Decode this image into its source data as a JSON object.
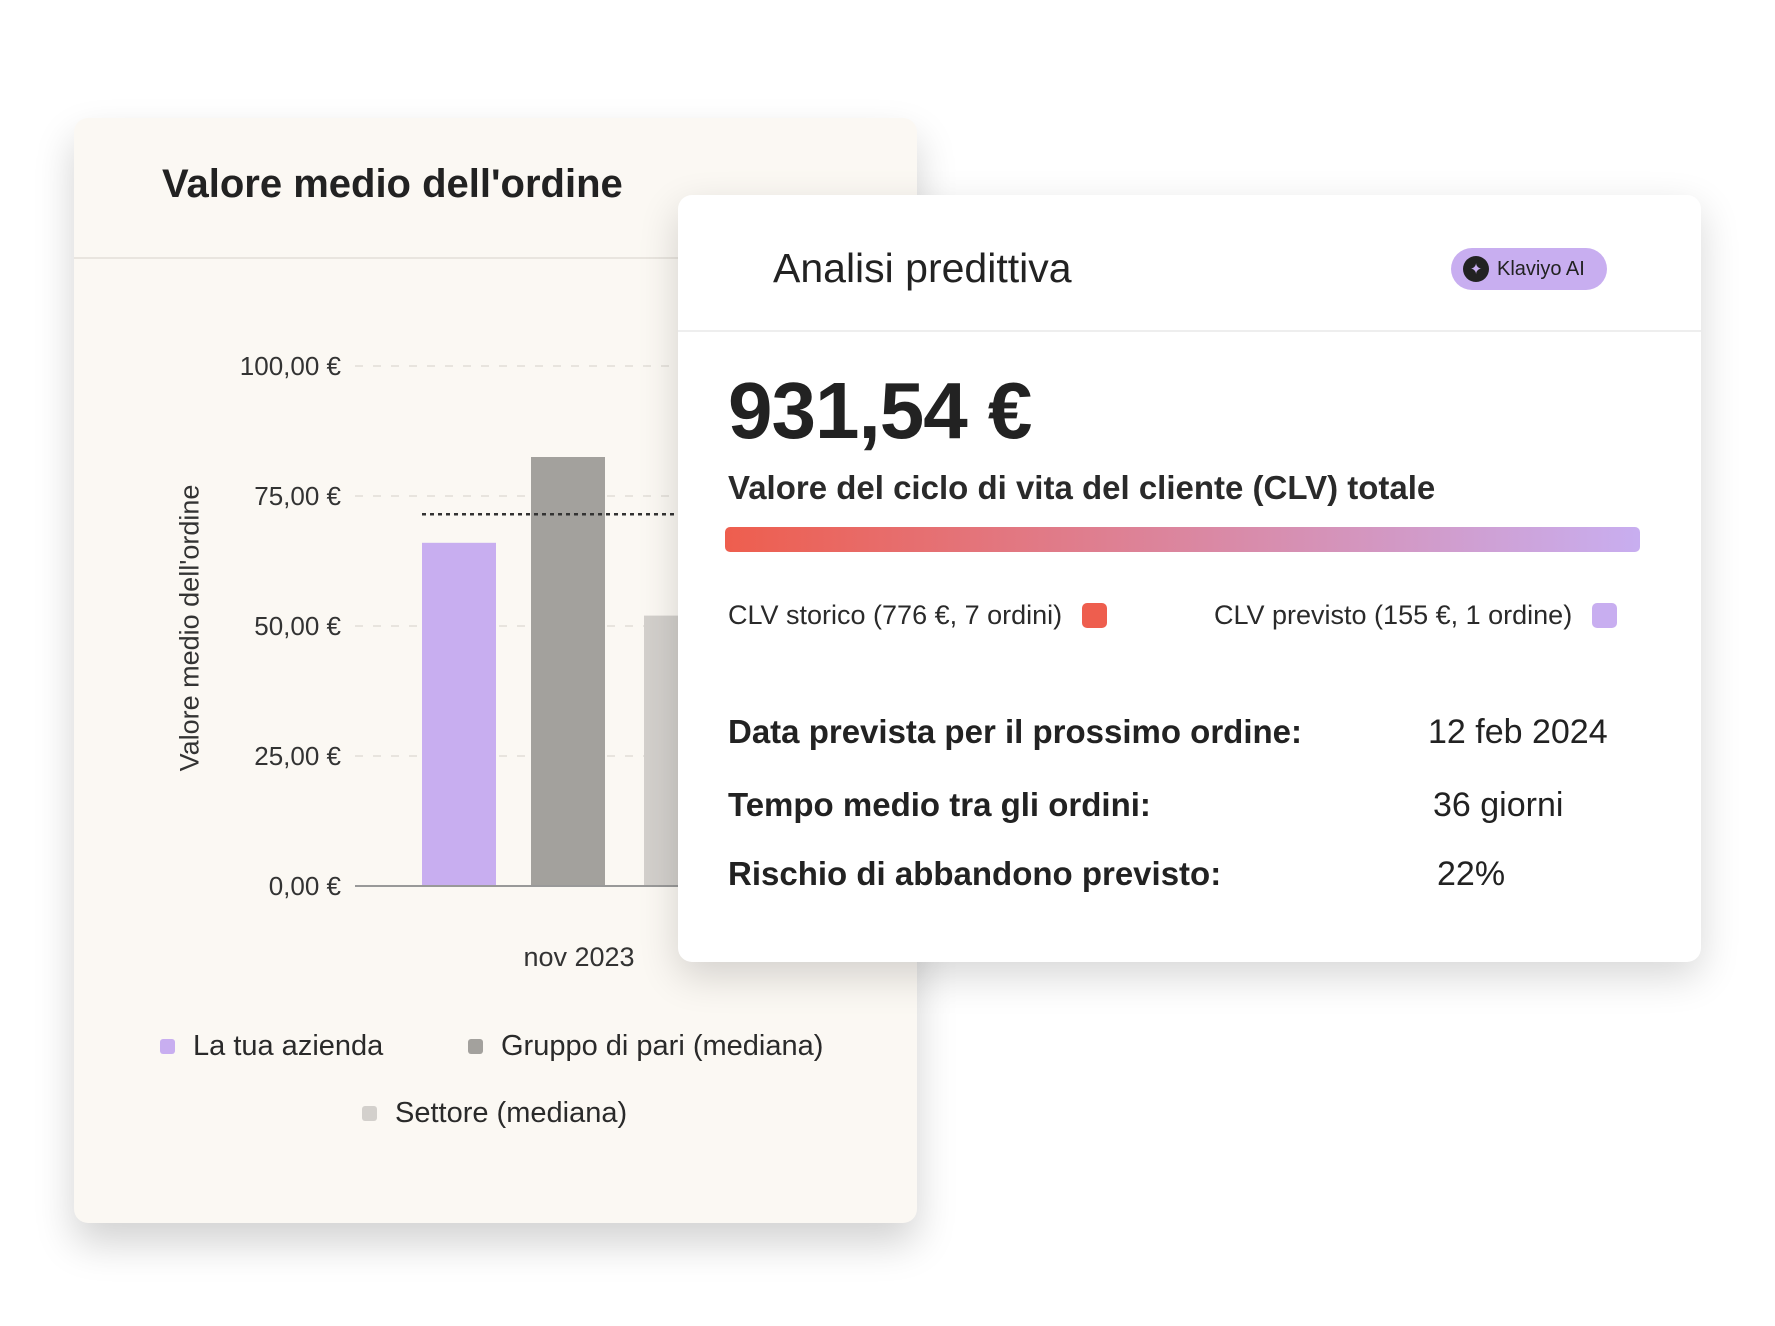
{
  "left_card": {
    "title": "Valore medio dell'ordine",
    "legend": [
      {
        "label": "La tua azienda",
        "color": "#c8aef0"
      },
      {
        "label": "Gruppo di pari (mediana)",
        "color": "#a3a19d"
      },
      {
        "label": "Settore (mediana)",
        "color": "#d3d0cc"
      }
    ]
  },
  "chart_data": {
    "type": "bar",
    "title": "Valore medio dell'ordine",
    "ylabel": "Valore medio dell'ordine",
    "xlabel": "",
    "categories": [
      "nov 2023"
    ],
    "series": [
      {
        "name": "La tua azienda",
        "values": [
          66
        ],
        "color": "#c8aef0"
      },
      {
        "name": "Gruppo di pari (mediana)",
        "values": [
          82.5
        ],
        "color": "#a3a19d"
      },
      {
        "name": "Settore (mediana)",
        "values": [
          52
        ],
        "color": "#d3d0cc"
      }
    ],
    "reference_line": 71.5,
    "ylim": [
      0,
      100
    ],
    "yticks": [
      0,
      25,
      50,
      75,
      100
    ],
    "ytick_labels": [
      "0,00 €",
      "25,00 €",
      "50,00 €",
      "75,00 €",
      "100,00 €"
    ],
    "grid": true,
    "legend_position": "bottom"
  },
  "right_card": {
    "title": "Analisi predittiva",
    "badge": {
      "label": "Klaviyo AI",
      "icon": "sparkle-icon",
      "color": "#c8aef0"
    },
    "total_clv": "931,54 €",
    "total_label": "Valore del ciclo di vita del cliente (CLV) totale",
    "historic_share": 0.833,
    "legend": [
      {
        "label": "CLV storico (776 €, 7 ordini)",
        "color": "#ee5e4e"
      },
      {
        "label": "CLV previsto (155 €, 1 ordine)",
        "color": "#c8aef0"
      }
    ],
    "stats": [
      {
        "label": "Data prevista per il prossimo ordine:",
        "value": "12 feb 2024"
      },
      {
        "label": "Tempo medio tra gli ordini:",
        "value": "36 giorni"
      },
      {
        "label": "Rischio di abbandono previsto:",
        "value": "22%"
      }
    ]
  }
}
